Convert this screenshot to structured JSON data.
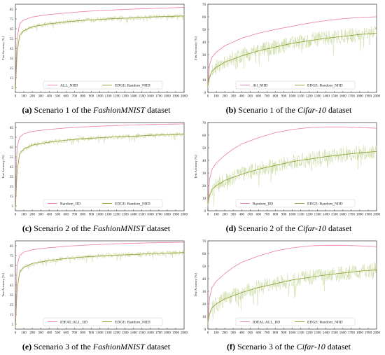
{
  "panels": [
    {
      "caption": {
        "letter": "(a)",
        "text": "Scenario 1 of the",
        "dataset": "FashionMNIST",
        "suffix": "dataset"
      },
      "chart_data": {
        "type": "line",
        "ylabel": "Test Accuracy [%]",
        "xlabel": "",
        "xlim": [
          0,
          2000
        ],
        "ylim": [
          0,
          90
        ],
        "xticks": [
          0,
          100,
          200,
          300,
          400,
          500,
          600,
          700,
          800,
          900,
          1000,
          1100,
          1200,
          1300,
          1400,
          1500,
          1600,
          1700,
          1800,
          1900,
          2000
        ],
        "yticks": [
          5,
          15,
          25,
          35,
          45,
          55,
          65,
          75,
          85
        ],
        "legend_position": "lower-center",
        "series": [
          {
            "name": "ALL_NIID",
            "color": "#ef7aa0",
            "kind": "smooth",
            "x": [
              0,
              20,
              50,
              100,
              200,
              400,
              600,
              800,
              1000,
              1200,
              1400,
              1600,
              1800,
              2000
            ],
            "y": [
              10,
              55,
              70,
              74,
              77,
              79.5,
              81,
              82.5,
              83.5,
              84.3,
              85,
              85.6,
              86.2,
              86.8
            ]
          },
          {
            "name": "EDGE: Random_NIID",
            "color": "#8a9b2a",
            "kind": "noisy",
            "x": [
              0,
              20,
              50,
              100,
              200,
              400,
              600,
              800,
              1000,
              1200,
              1400,
              1600,
              1800,
              2000
            ],
            "y": [
              2,
              40,
              58,
              63,
              67,
              70,
              72,
              73.5,
              74.5,
              75.5,
              76,
              77,
              77.5,
              78
            ],
            "noise": 2.5
          }
        ]
      }
    },
    {
      "caption": {
        "letter": "(b)",
        "text": "Scenario 1 of the",
        "dataset": "Cifar-10",
        "suffix": "dataset"
      },
      "chart_data": {
        "type": "line",
        "ylabel": "Test Accuracy [%]",
        "xlabel": "",
        "xlim": [
          0,
          2000
        ],
        "ylim": [
          0,
          70
        ],
        "xticks": [
          0,
          100,
          200,
          300,
          400,
          500,
          600,
          700,
          800,
          900,
          1000,
          1100,
          1200,
          1300,
          1400,
          1500,
          1600,
          1700,
          1800,
          1900,
          2000
        ],
        "yticks": [
          0,
          10,
          20,
          30,
          40,
          50,
          60,
          70
        ],
        "legend_position": "lower-center",
        "series": [
          {
            "name": "All_NIID",
            "color": "#ef7aa0",
            "kind": "smooth",
            "x": [
              0,
              20,
              50,
              100,
              200,
              300,
              400,
              600,
              800,
              1000,
              1200,
              1400,
              1600,
              1800,
              2000
            ],
            "y": [
              5,
              22,
              28,
              32,
              37,
              40,
              43,
              47,
              50,
              52.5,
              55,
              57,
              58.5,
              59.5,
              60
            ]
          },
          {
            "name": "EDGE: Random_NIID",
            "color": "#8a9b2a",
            "kind": "noisy",
            "x": [
              0,
              20,
              50,
              100,
              200,
              400,
              600,
              800,
              1000,
              1200,
              1400,
              1600,
              1800,
              2000
            ],
            "y": [
              5,
              12,
              17,
              20,
              24,
              29,
              33,
              36,
              39,
              41,
              43,
              44.5,
              46,
              47
            ],
            "noise": 6
          }
        ]
      }
    },
    {
      "caption": {
        "letter": "(c)",
        "text": "Scenario 2 of the",
        "dataset": "FashionMNIST",
        "suffix": "dataset"
      },
      "chart_data": {
        "type": "line",
        "ylabel": "Test Accuracy [%]",
        "xlabel": "",
        "xlim": [
          0,
          2000
        ],
        "ylim": [
          0,
          90
        ],
        "xticks": [
          0,
          100,
          200,
          300,
          400,
          500,
          600,
          700,
          800,
          900,
          1000,
          1100,
          1200,
          1300,
          1400,
          1500,
          1600,
          1700,
          1800,
          1900,
          2000
        ],
        "yticks": [
          5,
          15,
          25,
          35,
          45,
          55,
          65,
          75,
          85
        ],
        "legend_position": "lower-center",
        "series": [
          {
            "name": "Random_IID",
            "color": "#ef7aa0",
            "kind": "smooth",
            "x": [
              0,
              20,
              50,
              100,
              200,
              400,
              600,
              800,
              1000,
              1200,
              1400,
              1600,
              1800,
              2000
            ],
            "y": [
              10,
              65,
              75,
              78.5,
              81,
              83,
              84.5,
              85.5,
              86.3,
              87,
              87.5,
              88,
              88.3,
              88.6
            ]
          },
          {
            "name": "EDGE: Random_NIID",
            "color": "#8a9b2a",
            "kind": "noisy",
            "x": [
              0,
              20,
              50,
              100,
              200,
              400,
              600,
              800,
              1000,
              1200,
              1400,
              1600,
              1800,
              2000
            ],
            "y": [
              2,
              40,
              58,
              63,
              67,
              70,
              72,
              73.5,
              74.5,
              75.5,
              76,
              77,
              77.5,
              78
            ],
            "noise": 2.5
          }
        ]
      }
    },
    {
      "caption": {
        "letter": "(d)",
        "text": "Scenario 2 of the",
        "dataset": "Cifar-10",
        "suffix": "dataset"
      },
      "chart_data": {
        "type": "line",
        "ylabel": "Test Accuracy [%]",
        "xlabel": "",
        "xlim": [
          0,
          2000
        ],
        "ylim": [
          0,
          70
        ],
        "xticks": [
          0,
          100,
          200,
          300,
          400,
          500,
          600,
          700,
          800,
          900,
          1000,
          1100,
          1200,
          1300,
          1400,
          1500,
          1600,
          1700,
          1800,
          1900,
          2000
        ],
        "yticks": [
          0,
          10,
          20,
          30,
          40,
          50,
          60,
          70
        ],
        "legend_position": "lower-center",
        "series": [
          {
            "name": "Random_IID",
            "color": "#ef7aa0",
            "kind": "smooth",
            "x": [
              0,
              20,
              50,
              100,
              200,
              300,
              400,
              600,
              800,
              1000,
              1200,
              1400,
              1600,
              1800,
              2000
            ],
            "y": [
              5,
              25,
              33,
              38,
              44,
              49,
              53,
              58,
              62,
              64.5,
              66,
              66.5,
              66.5,
              66,
              65.5
            ]
          },
          {
            "name": "EDGE: Random_NIID",
            "color": "#8a9b2a",
            "kind": "noisy",
            "x": [
              0,
              20,
              50,
              100,
              200,
              400,
              600,
              800,
              1000,
              1200,
              1400,
              1600,
              1800,
              2000
            ],
            "y": [
              5,
              12,
              17,
              20,
              24,
              29,
              33,
              36,
              39,
              41,
              43,
              44.5,
              46,
              47
            ],
            "noise": 6
          }
        ]
      }
    },
    {
      "caption": {
        "letter": "(e)",
        "text": "Scenario 3 of the",
        "dataset": "FashionMNIST",
        "suffix": "dataset"
      },
      "chart_data": {
        "type": "line",
        "ylabel": "Test Accuracy [%]",
        "xlabel": "",
        "xlim": [
          0,
          2000
        ],
        "ylim": [
          0,
          90
        ],
        "xticks": [
          0,
          100,
          200,
          300,
          400,
          500,
          600,
          700,
          800,
          900,
          1000,
          1100,
          1200,
          1300,
          1400,
          1500,
          1600,
          1700,
          1800,
          1900,
          2000
        ],
        "yticks": [
          5,
          15,
          25,
          35,
          45,
          55,
          65,
          75,
          85
        ],
        "legend_position": "lower-center",
        "series": [
          {
            "name": "IDEAL:ALL_IID",
            "color": "#ef7aa0",
            "kind": "smooth",
            "x": [
              0,
              20,
              50,
              100,
              200,
              400,
              600,
              800,
              1000,
              1200,
              1400,
              1600,
              1800,
              2000
            ],
            "y": [
              10,
              65,
              75,
              78.5,
              81,
              83,
              84.5,
              85.5,
              86.3,
              87,
              87.5,
              88,
              88.3,
              88.6
            ]
          },
          {
            "name": "EDGE: Random_NIID",
            "color": "#8a9b2a",
            "kind": "noisy",
            "x": [
              0,
              20,
              50,
              100,
              200,
              400,
              600,
              800,
              1000,
              1200,
              1400,
              1600,
              1800,
              2000
            ],
            "y": [
              2,
              40,
              58,
              63,
              67,
              70,
              72,
              73.5,
              74.5,
              75.5,
              76,
              77,
              77.5,
              78
            ],
            "noise": 2.5
          }
        ]
      }
    },
    {
      "caption": {
        "letter": "(f)",
        "text": "Scenario 3 of the",
        "dataset": "Cifar-10",
        "suffix": "dataset"
      },
      "chart_data": {
        "type": "line",
        "ylabel": "Test Accuracy [%]",
        "xlabel": "",
        "xlim": [
          0,
          2000
        ],
        "ylim": [
          0,
          70
        ],
        "xticks": [
          0,
          100,
          200,
          300,
          400,
          500,
          600,
          700,
          800,
          900,
          1000,
          1100,
          1200,
          1300,
          1400,
          1500,
          1600,
          1700,
          1800,
          1900,
          2000
        ],
        "yticks": [
          0,
          10,
          20,
          30,
          40,
          50,
          60,
          70
        ],
        "legend_position": "lower-center",
        "series": [
          {
            "name": "IDEAL:ALL_IID",
            "color": "#ef7aa0",
            "kind": "smooth",
            "x": [
              0,
              20,
              50,
              100,
              200,
              300,
              400,
              600,
              800,
              1000,
              1200,
              1400,
              1600,
              1800,
              2000
            ],
            "y": [
              5,
              25,
              33,
              38,
              44,
              49,
              53,
              58,
              62,
              64.5,
              66,
              66.5,
              66.5,
              66,
              65.5
            ]
          },
          {
            "name": "EDGE: Random_NIID",
            "color": "#8a9b2a",
            "kind": "noisy",
            "x": [
              0,
              20,
              50,
              100,
              200,
              400,
              600,
              800,
              1000,
              1200,
              1400,
              1600,
              1800,
              2000
            ],
            "y": [
              5,
              12,
              17,
              20,
              24,
              29,
              33,
              36,
              39,
              41,
              43,
              44.5,
              46,
              47
            ],
            "noise": 6
          }
        ]
      }
    }
  ]
}
